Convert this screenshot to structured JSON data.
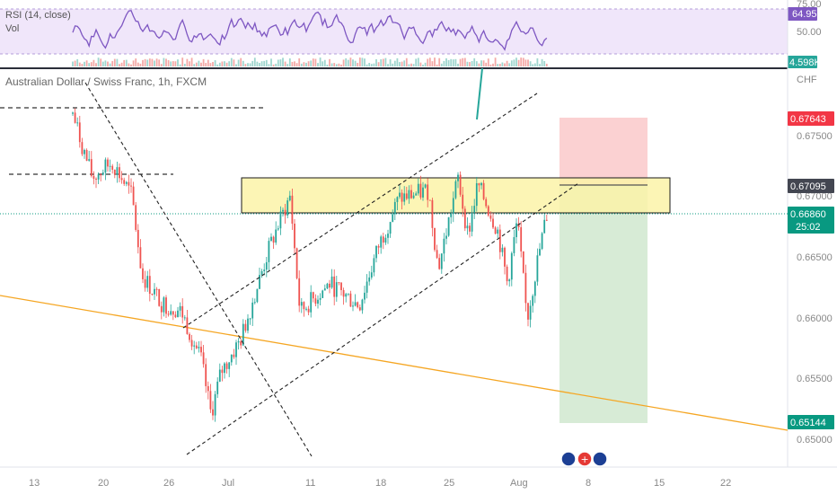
{
  "rsi_panel": {
    "label": "RSI (14, close)",
    "sublabel": "Vol",
    "top_tick": "75.00",
    "mid_tick": "50.00",
    "rsi_value": "64.95",
    "volume_value": "4.598K",
    "series_seed": 7
  },
  "symbol_title": "Australian Dollar / Swiss Franc, 1h, FXCM",
  "currency": "CHF",
  "price_axis": {
    "ticks": [
      "0.67500",
      "0.67000",
      "0.66500",
      "0.66000",
      "0.65500",
      "0.65000"
    ]
  },
  "price_tags": {
    "stop": "0.67643",
    "entry": "0.67095",
    "current": "0.66860",
    "countdown": "25:02",
    "target": "0.65144"
  },
  "time_axis": {
    "labels": [
      "13",
      "20",
      "26",
      "Jul",
      "11",
      "18",
      "25",
      "Aug",
      "8",
      "15",
      "22"
    ]
  },
  "colors": {
    "up": "#26a69a",
    "down": "#ef5350",
    "stop_tag": "#f23645",
    "target_tag": "#089981",
    "current_tag": "#089981",
    "entry_tag": "#434651",
    "rsi_line": "#7e57c2",
    "rsi_band": "#f0e6fa",
    "trendline": "#f5a623",
    "zone_fill": "#fbf3a8",
    "profit_zone": "#d7ebd6",
    "loss_zone": "#fbd1d2"
  },
  "chart_data": {
    "type": "candlestick",
    "symbol": "Australian Dollar / Swiss Franc",
    "interval": "1h",
    "source": "FXCM",
    "y_unit": "CHF",
    "ylim": [
      0.6495,
      0.6785
    ],
    "x_tick_labels": [
      "13",
      "20",
      "26",
      "Jul",
      "11",
      "18",
      "25",
      "Aug",
      "8",
      "15",
      "22"
    ],
    "price_path_anchors": [
      {
        "x": "Jun 17",
        "price": 0.6768
      },
      {
        "x": "Jun 18",
        "price": 0.674
      },
      {
        "x": "Jun 19",
        "price": 0.6715
      },
      {
        "x": "Jun 21",
        "price": 0.6728
      },
      {
        "x": "Jun 23",
        "price": 0.67
      },
      {
        "x": "Jun 24",
        "price": 0.6635
      },
      {
        "x": "Jun 26",
        "price": 0.6612
      },
      {
        "x": "Jun 28",
        "price": 0.6605
      },
      {
        "x": "Jun 30",
        "price": 0.6565
      },
      {
        "x": "Jul 1",
        "price": 0.652
      },
      {
        "x": "Jul 2",
        "price": 0.6555
      },
      {
        "x": "Jul 4",
        "price": 0.6582
      },
      {
        "x": "Jul 7",
        "price": 0.666
      },
      {
        "x": "Jul 9",
        "price": 0.67
      },
      {
        "x": "Jul 10",
        "price": 0.6605
      },
      {
        "x": "Jul 13",
        "price": 0.6628
      },
      {
        "x": "Jul 16",
        "price": 0.661
      },
      {
        "x": "Jul 18",
        "price": 0.666
      },
      {
        "x": "Jul 20",
        "price": 0.6698
      },
      {
        "x": "Jul 23",
        "price": 0.6705
      },
      {
        "x": "Jul 24",
        "price": 0.664
      },
      {
        "x": "Jul 26",
        "price": 0.6715
      },
      {
        "x": "Jul 27",
        "price": 0.6668
      },
      {
        "x": "Jul 28",
        "price": 0.671
      },
      {
        "x": "Jul 30",
        "price": 0.6672
      },
      {
        "x": "Jul 31",
        "price": 0.6628
      },
      {
        "x": "Aug 1",
        "price": 0.668
      },
      {
        "x": "Aug 2",
        "price": 0.6598
      },
      {
        "x": "Aug 3",
        "price": 0.6645
      },
      {
        "x": "Aug 4",
        "price": 0.6686
      }
    ],
    "resistance_zone": {
      "top": 0.67095,
      "bottom": 0.6685
    },
    "horizontal_levels": [
      0.6746,
      0.6722
    ],
    "position": {
      "side": "short",
      "entry": 0.67095,
      "stop": 0.67643,
      "target": 0.65144
    },
    "last_price": 0.6686
  }
}
